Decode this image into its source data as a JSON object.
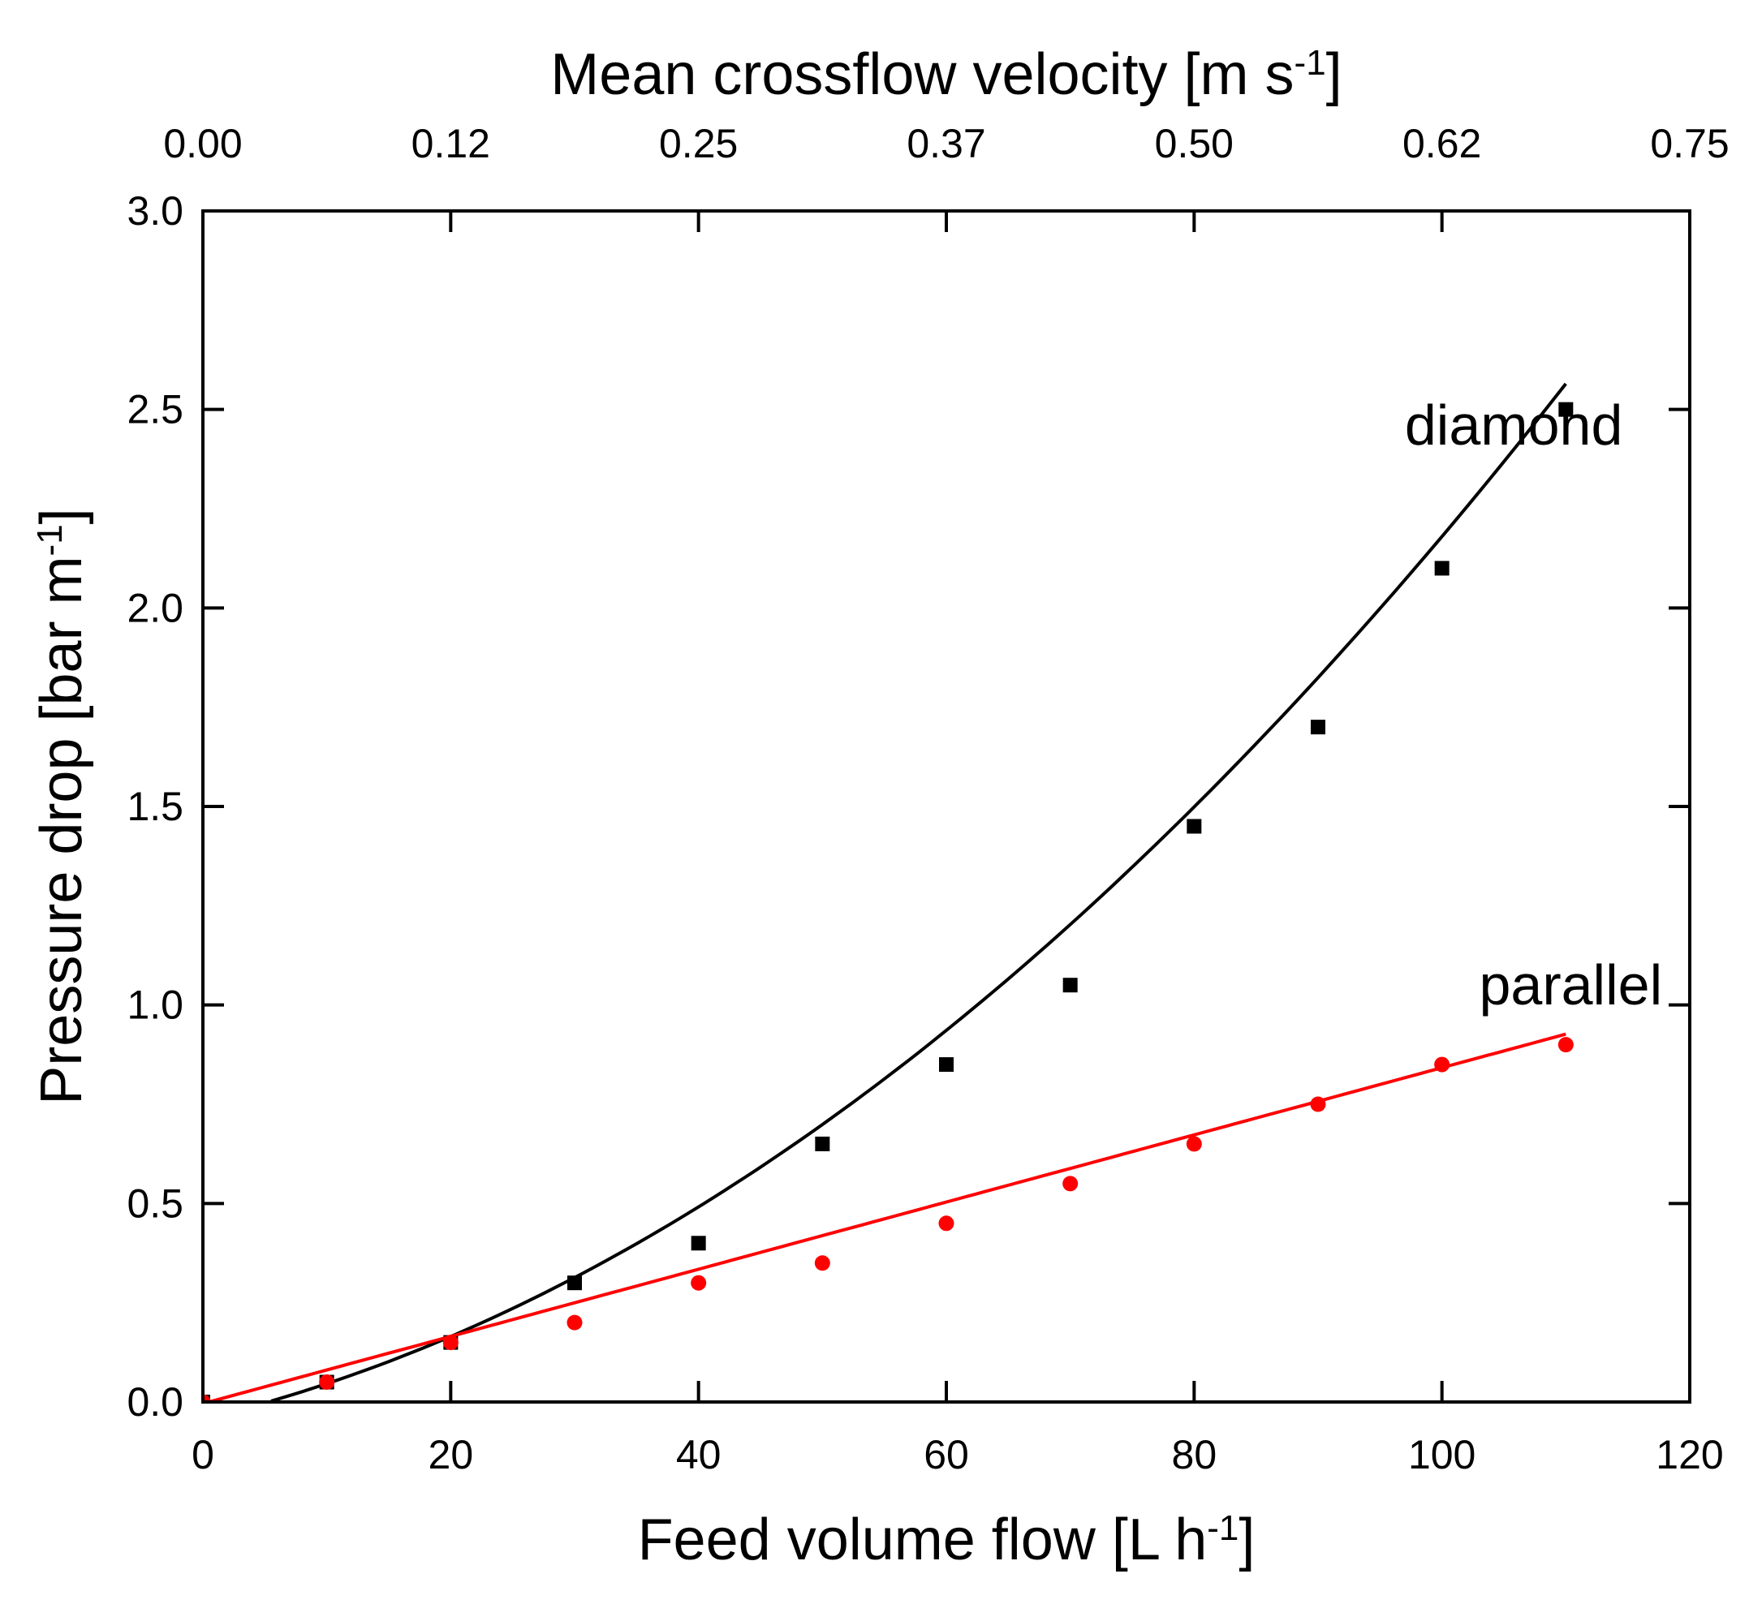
{
  "chart_data": {
    "type": "scatter",
    "title": "",
    "xlabel": "Feed volume flow [L h",
    "xlabel_sup": "-1",
    "xlabel_end": "]",
    "x2label": "Mean crossflow velocity [m s",
    "x2label_sup": "-1",
    "x2label_end": "]",
    "ylabel": "Pressure drop [bar m",
    "ylabel_sup": "-1",
    "ylabel_end": "]",
    "xlim": [
      0,
      120
    ],
    "ylim": [
      0,
      3.0
    ],
    "x2lim": [
      0,
      0.75
    ],
    "x_ticks": [
      0,
      20,
      40,
      60,
      80,
      100,
      120
    ],
    "x_tick_labels": [
      "0",
      "20",
      "40",
      "60",
      "80",
      "100",
      "120"
    ],
    "x2_ticks": [
      0,
      0.125,
      0.25,
      0.375,
      0.5,
      0.625,
      0.75
    ],
    "x2_tick_labels": [
      "0.00",
      "0.12",
      "0.25",
      "0.37",
      "0.50",
      "0.62",
      "0.75"
    ],
    "y_ticks": [
      0,
      0.5,
      1.0,
      1.5,
      2.0,
      2.5,
      3.0
    ],
    "y_tick_labels": [
      "0.0",
      "0.5",
      "1.0",
      "1.5",
      "2.0",
      "2.5",
      "3.0"
    ],
    "grid": false,
    "series": [
      {
        "name": "diamond",
        "color": "#000000",
        "marker": "square",
        "x": [
          0,
          10,
          20,
          30,
          40,
          50,
          60,
          70,
          80,
          90,
          100,
          110
        ],
        "y": [
          0.0,
          0.05,
          0.15,
          0.3,
          0.4,
          0.65,
          0.85,
          1.05,
          1.45,
          1.7,
          2.1,
          2.5
        ],
        "fit": {
          "kind": "quadratic",
          "coeffs": [
            -0.0431,
            0.00745,
            0.0001478
          ],
          "x_range": [
            5.5,
            110
          ]
        }
      },
      {
        "name": "parallel",
        "color": "#ff0000",
        "marker": "circle",
        "x": [
          0,
          10,
          20,
          30,
          40,
          50,
          60,
          70,
          80,
          90,
          100,
          110
        ],
        "y": [
          0.0,
          0.05,
          0.15,
          0.2,
          0.3,
          0.35,
          0.45,
          0.55,
          0.65,
          0.75,
          0.85,
          0.9
        ],
        "fit": {
          "kind": "quadratic",
          "coeffs": [
            -0.004,
            0.00846,
            0.0
          ],
          "x_range": [
            0,
            110
          ]
        }
      }
    ],
    "annotations": [
      {
        "text": "diamond",
        "series": "diamond",
        "x": 97,
        "y": 2.46
      },
      {
        "text": "parallel",
        "series": "parallel",
        "x": 103,
        "y": 1.05
      }
    ]
  }
}
